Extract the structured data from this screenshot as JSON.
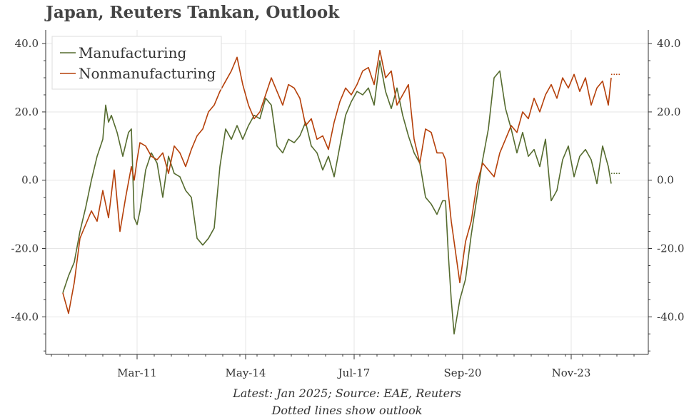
{
  "title": "Japan, Reuters Tankan, Outlook",
  "footnote_source": "Latest: Jan 2025; Source: EAE, Reuters",
  "footnote_outlook": "Dotted lines show outlook",
  "chart_data": {
    "type": "line",
    "title": "Japan, Reuters Tankan, Outlook",
    "xlabel": "",
    "ylabel": "",
    "x_ticks": [
      "Mar-11",
      "May-14",
      "Jul-17",
      "Sep-20",
      "Nov-23"
    ],
    "x_range": [
      "2008-07",
      "2026-02"
    ],
    "ylim": [
      -51,
      44
    ],
    "y_ticks": [
      "-40.0",
      "-20.0",
      "0.0",
      "20.0",
      "40.0"
    ],
    "y_tick_values": [
      -40,
      -20,
      0,
      20,
      40
    ],
    "y_axis_sides": [
      "left",
      "right"
    ],
    "grid": true,
    "legend_position": "top-left",
    "series": [
      {
        "name": "Manufacturing",
        "color": "#556B2F",
        "x": [
          "2009-01",
          "2009-03",
          "2009-05",
          "2009-07",
          "2009-09",
          "2009-11",
          "2010-01",
          "2010-03",
          "2010-04",
          "2010-05",
          "2010-06",
          "2010-08",
          "2010-10",
          "2010-12",
          "2011-01",
          "2011-02",
          "2011-03",
          "2011-04",
          "2011-06",
          "2011-08",
          "2011-10",
          "2011-12",
          "2012-02",
          "2012-04",
          "2012-06",
          "2012-08",
          "2012-10",
          "2012-12",
          "2013-02",
          "2013-04",
          "2013-06",
          "2013-08",
          "2013-10",
          "2013-12",
          "2014-02",
          "2014-04",
          "2014-06",
          "2014-08",
          "2014-10",
          "2014-12",
          "2015-02",
          "2015-04",
          "2015-06",
          "2015-08",
          "2015-10",
          "2015-12",
          "2016-02",
          "2016-04",
          "2016-06",
          "2016-08",
          "2016-10",
          "2016-12",
          "2017-02",
          "2017-04",
          "2017-06",
          "2017-08",
          "2017-10",
          "2017-12",
          "2018-02",
          "2018-04",
          "2018-06",
          "2018-08",
          "2018-10",
          "2018-12",
          "2019-02",
          "2019-04",
          "2019-06",
          "2019-08",
          "2019-10",
          "2019-12",
          "2020-02",
          "2020-03",
          "2020-04",
          "2020-05",
          "2020-06",
          "2020-08",
          "2020-10",
          "2020-12",
          "2021-02",
          "2021-04",
          "2021-06",
          "2021-08",
          "2021-10",
          "2021-12",
          "2022-02",
          "2022-04",
          "2022-06",
          "2022-08",
          "2022-10",
          "2022-12",
          "2023-02",
          "2023-04",
          "2023-06",
          "2023-08",
          "2023-10",
          "2023-12",
          "2024-02",
          "2024-04",
          "2024-06",
          "2024-08",
          "2024-10",
          "2024-12",
          "2025-01"
        ],
        "y": [
          -33,
          -28,
          -24,
          -15,
          -8,
          0,
          7,
          12,
          22,
          17,
          19,
          14,
          7,
          14,
          15,
          -11,
          -13,
          -9,
          3,
          8,
          5,
          -5,
          7,
          2,
          1,
          -3,
          -5,
          -17,
          -19,
          -17,
          -14,
          4,
          15,
          12,
          16,
          12,
          16,
          19,
          18,
          24,
          22,
          10,
          8,
          12,
          11,
          13,
          17,
          10,
          8,
          3,
          7,
          1,
          10,
          19,
          23,
          26,
          25,
          27,
          22,
          35,
          26,
          21,
          27,
          19,
          13,
          8,
          5,
          -5,
          -7,
          -10,
          -6,
          -6,
          -22,
          -35,
          -45,
          -35,
          -29,
          -16,
          -5,
          6,
          15,
          30,
          32,
          21,
          15,
          8,
          14,
          7,
          9,
          4,
          12,
          -6,
          -3,
          6,
          10,
          1,
          7,
          9,
          6,
          -1,
          10,
          4,
          -1
        ],
        "outlook_x": [
          "2025-01",
          "2025-04"
        ],
        "outlook_y": [
          2,
          2
        ]
      },
      {
        "name": "Nonmanufacturing",
        "color": "#B5400A",
        "x": [
          "2009-01",
          "2009-03",
          "2009-05",
          "2009-07",
          "2009-09",
          "2009-11",
          "2010-01",
          "2010-03",
          "2010-05",
          "2010-07",
          "2010-09",
          "2010-11",
          "2011-01",
          "2011-02",
          "2011-03",
          "2011-04",
          "2011-06",
          "2011-08",
          "2011-10",
          "2011-12",
          "2012-02",
          "2012-04",
          "2012-06",
          "2012-08",
          "2012-10",
          "2012-12",
          "2013-02",
          "2013-04",
          "2013-06",
          "2013-08",
          "2013-10",
          "2013-12",
          "2014-02",
          "2014-04",
          "2014-06",
          "2014-08",
          "2014-10",
          "2014-12",
          "2015-02",
          "2015-04",
          "2015-06",
          "2015-08",
          "2015-10",
          "2015-12",
          "2016-02",
          "2016-04",
          "2016-06",
          "2016-08",
          "2016-10",
          "2016-12",
          "2017-02",
          "2017-04",
          "2017-06",
          "2017-08",
          "2017-10",
          "2017-12",
          "2018-02",
          "2018-04",
          "2018-06",
          "2018-08",
          "2018-10",
          "2018-12",
          "2019-02",
          "2019-04",
          "2019-06",
          "2019-08",
          "2019-10",
          "2019-12",
          "2020-02",
          "2020-03",
          "2020-04",
          "2020-05",
          "2020-06",
          "2020-08",
          "2020-10",
          "2020-12",
          "2021-02",
          "2021-04",
          "2021-06",
          "2021-08",
          "2021-10",
          "2021-12",
          "2022-02",
          "2022-04",
          "2022-06",
          "2022-08",
          "2022-10",
          "2022-12",
          "2023-02",
          "2023-04",
          "2023-06",
          "2023-08",
          "2023-10",
          "2023-12",
          "2024-02",
          "2024-04",
          "2024-06",
          "2024-08",
          "2024-10",
          "2024-12",
          "2025-01"
        ],
        "y": [
          -33,
          -39,
          -30,
          -17,
          -13,
          -9,
          -12,
          -3,
          -11,
          3,
          -15,
          -5,
          4,
          0,
          6,
          11,
          10,
          7,
          6,
          8,
          2,
          10,
          8,
          4,
          9,
          13,
          15,
          20,
          22,
          26,
          29,
          32,
          36,
          28,
          22,
          18,
          20,
          25,
          30,
          26,
          22,
          28,
          27,
          24,
          16,
          18,
          12,
          13,
          9,
          17,
          23,
          27,
          25,
          28,
          32,
          33,
          28,
          38,
          30,
          32,
          22,
          25,
          28,
          12,
          5,
          15,
          14,
          8,
          8,
          6,
          -4,
          -12,
          -18,
          -30,
          -18,
          -12,
          -1,
          5,
          3,
          1,
          8,
          12,
          16,
          14,
          20,
          18,
          24,
          20,
          25,
          28,
          24,
          30,
          27,
          31,
          26,
          30,
          22,
          27,
          29,
          22,
          30
        ],
        "outlook_x": [
          "2025-01",
          "2025-04"
        ],
        "outlook_y": [
          31,
          31
        ]
      }
    ]
  }
}
